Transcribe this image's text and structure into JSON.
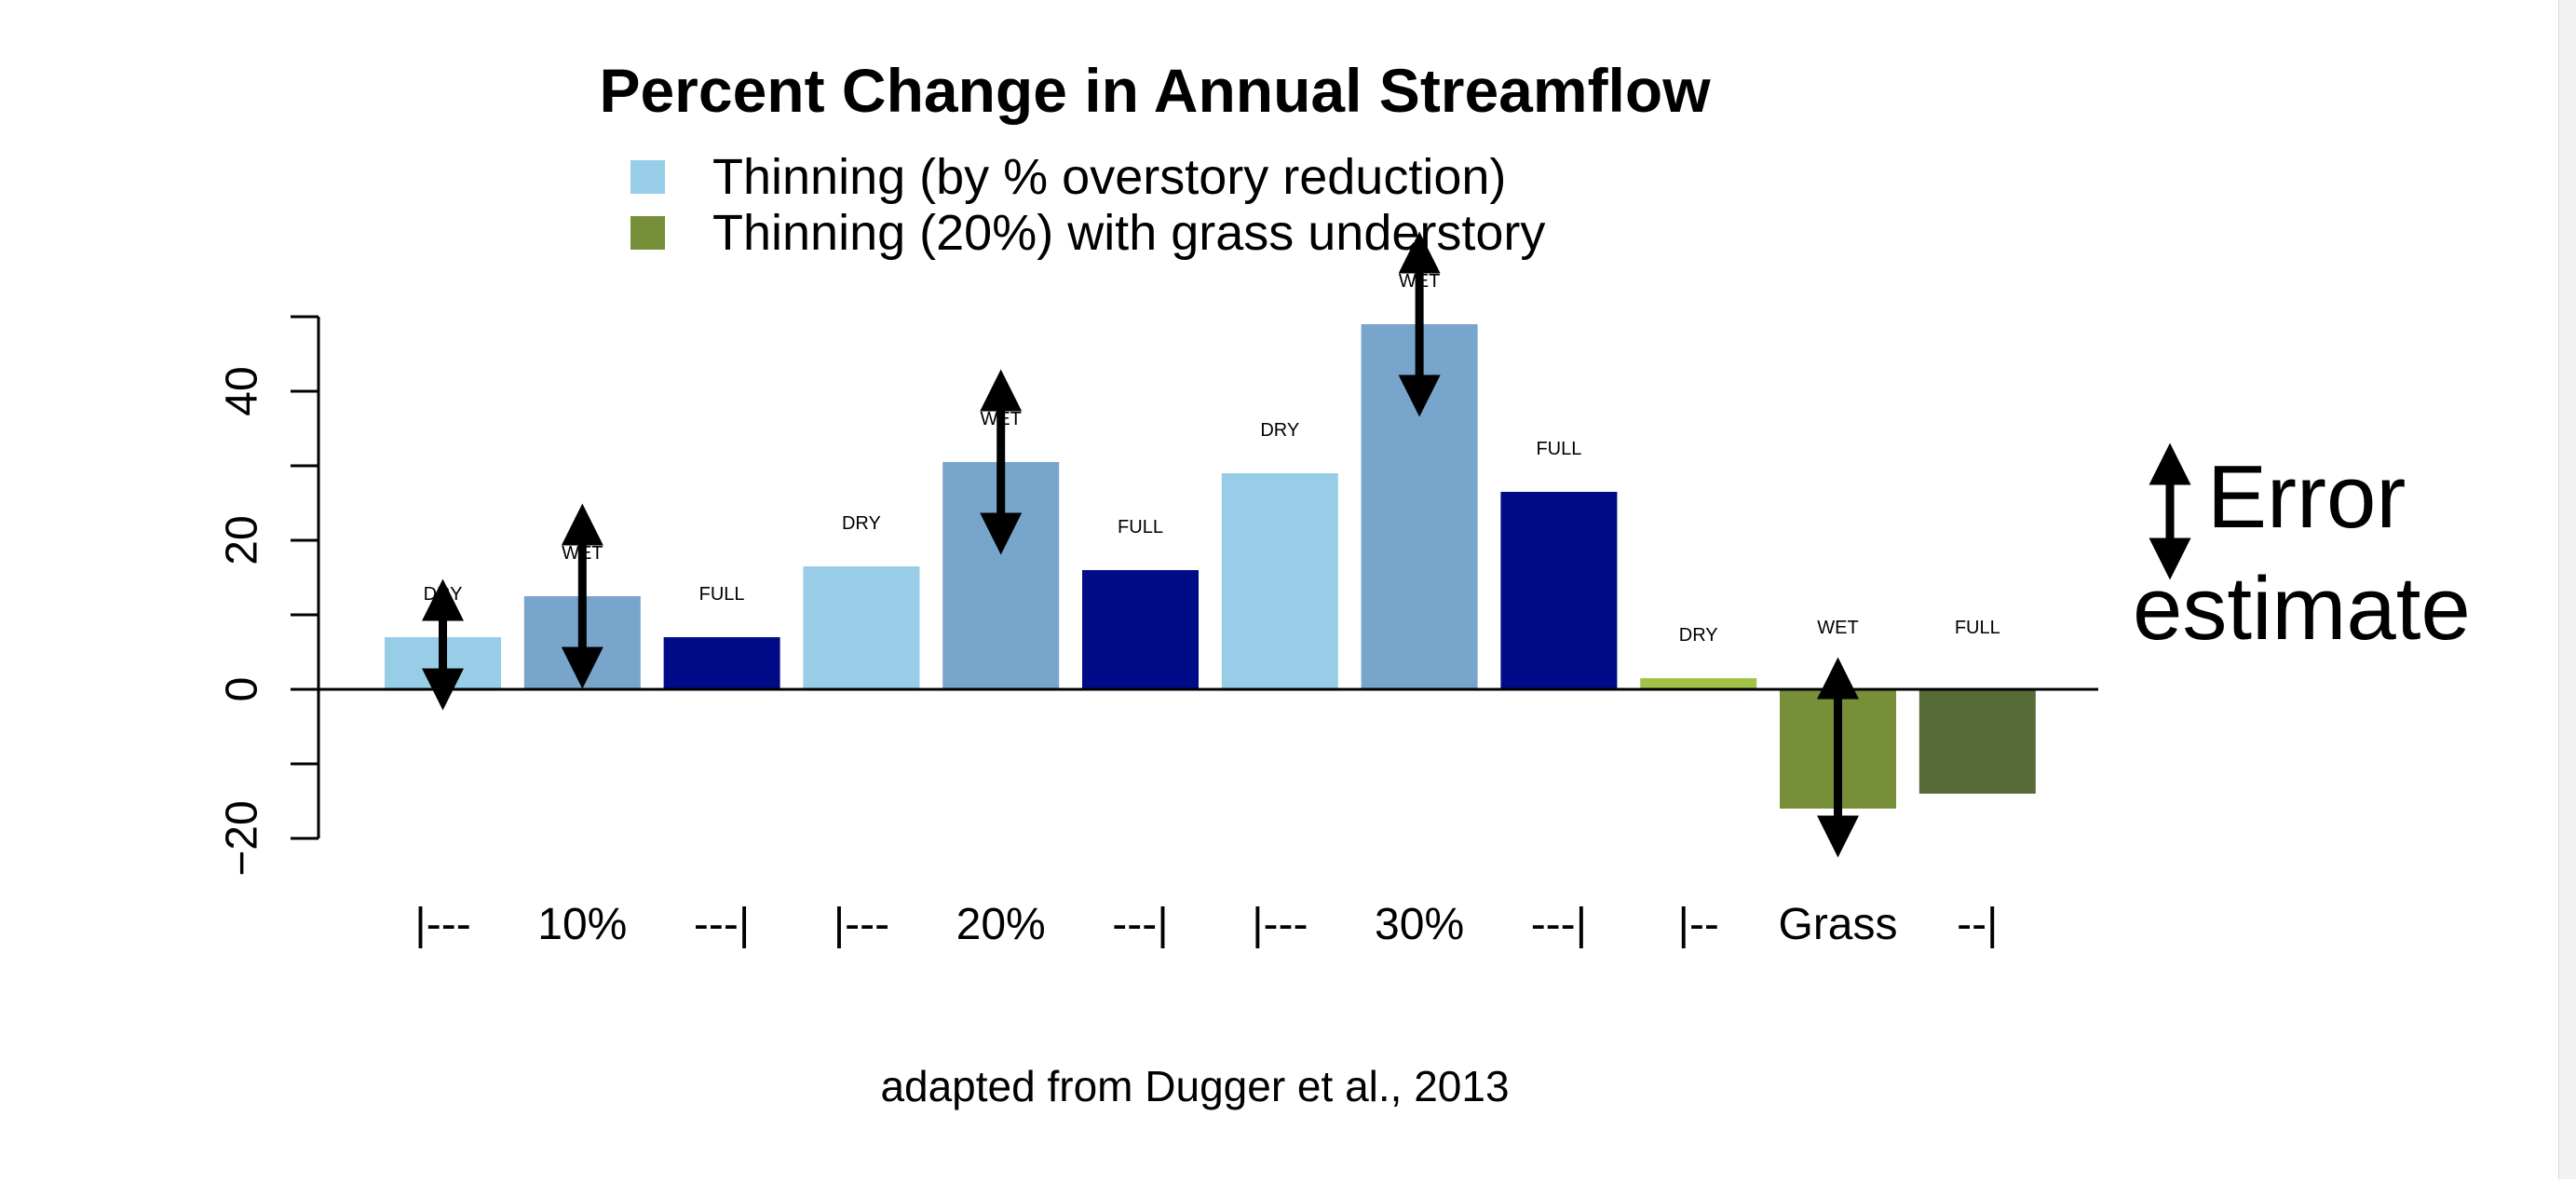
{
  "chart_data": {
    "type": "bar",
    "title": "Percent Change in Annual Streamflow",
    "ylabel": "",
    "xlabel": "",
    "ylim": [
      -20,
      50
    ],
    "yticks": [
      -20,
      0,
      20,
      40
    ],
    "grid": false,
    "legend_placement": "top",
    "legend": [
      {
        "label": "Thinning (by % overstory reduction)",
        "color": "#98CDE8"
      },
      {
        "label": "Thinning (20%) with grass understory",
        "color": "#768F38"
      }
    ],
    "categories": [
      "|---",
      "10%",
      "---|",
      "|---",
      "20%",
      "---|",
      "|---",
      "30%",
      "---|",
      "|--",
      "Grass",
      "--|"
    ],
    "bars": [
      {
        "label": "DRY",
        "value": 7,
        "color": "#98CDE8",
        "error": true
      },
      {
        "label": "WET",
        "value": 12.5,
        "color": "#78A5CC",
        "error": true
      },
      {
        "label": "FULL",
        "value": 7,
        "color": "#000C87",
        "error": false
      },
      {
        "label": "DRY",
        "value": 16.5,
        "color": "#98CDE8",
        "error": false
      },
      {
        "label": "WET",
        "value": 30.5,
        "color": "#78A5CC",
        "error": true
      },
      {
        "label": "FULL",
        "value": 16,
        "color": "#000C87",
        "error": false
      },
      {
        "label": "DRY",
        "value": 29,
        "color": "#98CDE8",
        "error": false
      },
      {
        "label": "WET",
        "value": 49,
        "color": "#78A5CC",
        "error": true
      },
      {
        "label": "FULL",
        "value": 26.5,
        "color": "#000C87",
        "error": false
      },
      {
        "label": "DRY",
        "value": 1.5,
        "color": "#A3C24A",
        "error": false
      },
      {
        "label": "WET",
        "value": -16,
        "color": "#768F38",
        "error": true
      },
      {
        "label": "FULL",
        "value": -14,
        "color": "#576B38",
        "error": false
      }
    ],
    "error_legend": {
      "line1": "Error",
      "line2": "estimate"
    },
    "source": "adapted from Dugger et al., 2013"
  }
}
